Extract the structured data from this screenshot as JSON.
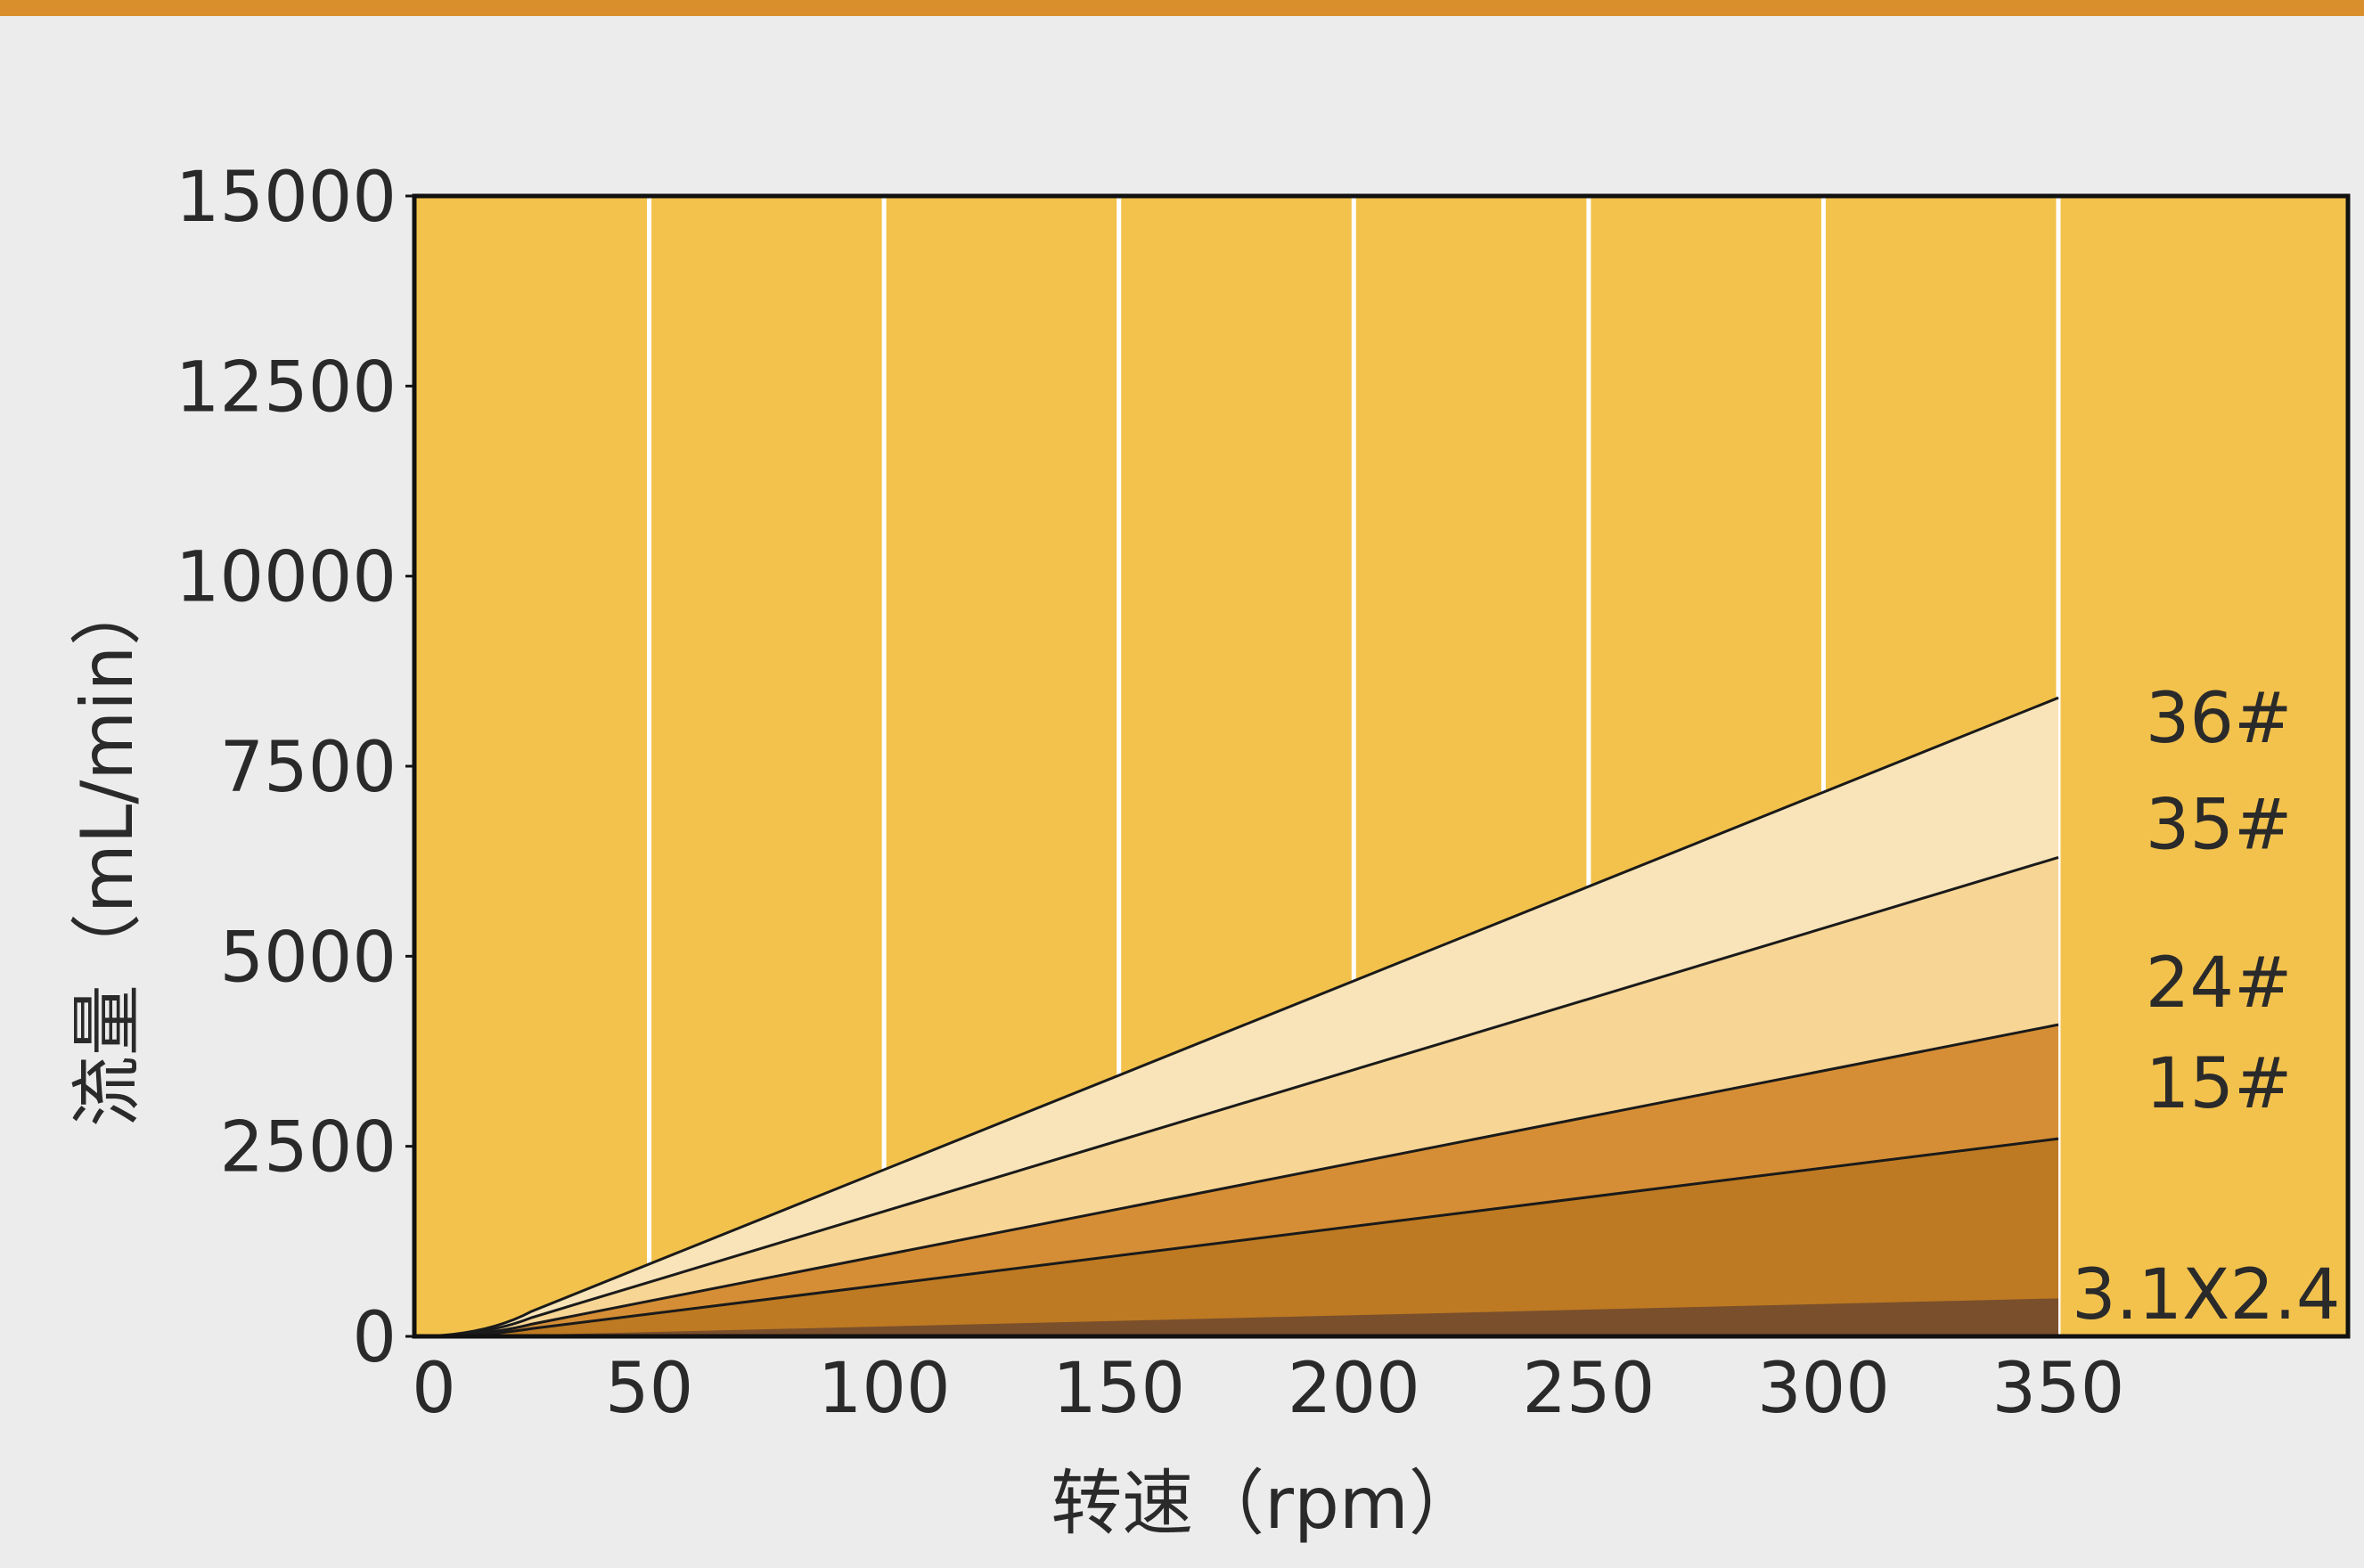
{
  "chart_data": {
    "type": "area",
    "xlabel": "转速（rpm）",
    "ylabel": "流量（mL/min）",
    "xlim": [
      0,
      350
    ],
    "ylim": [
      0,
      15000
    ],
    "x_ticks": [
      0,
      50,
      100,
      150,
      200,
      250,
      300,
      350
    ],
    "y_ticks": [
      0,
      2500,
      5000,
      7500,
      10000,
      12500,
      15000
    ],
    "grid": "vertical",
    "legend": "series names labeled at right end of each area",
    "x": [
      0,
      350
    ],
    "series": [
      {
        "name": "3.1X2.4",
        "values": [
          0,
          500
        ],
        "color": "#7a4f2c"
      },
      {
        "name": "15#",
        "values": [
          0,
          2600
        ],
        "color": "#bd7a22"
      },
      {
        "name": "24#",
        "values": [
          0,
          4100
        ],
        "color": "#d58e35"
      },
      {
        "name": "35#",
        "values": [
          0,
          6300
        ],
        "color": "#f7d595"
      },
      {
        "name": "36#",
        "values": [
          0,
          8400
        ],
        "color": "#f9e4b9"
      }
    ],
    "plot_background": "#f3c24c",
    "top_band_color": "#d9902c"
  }
}
